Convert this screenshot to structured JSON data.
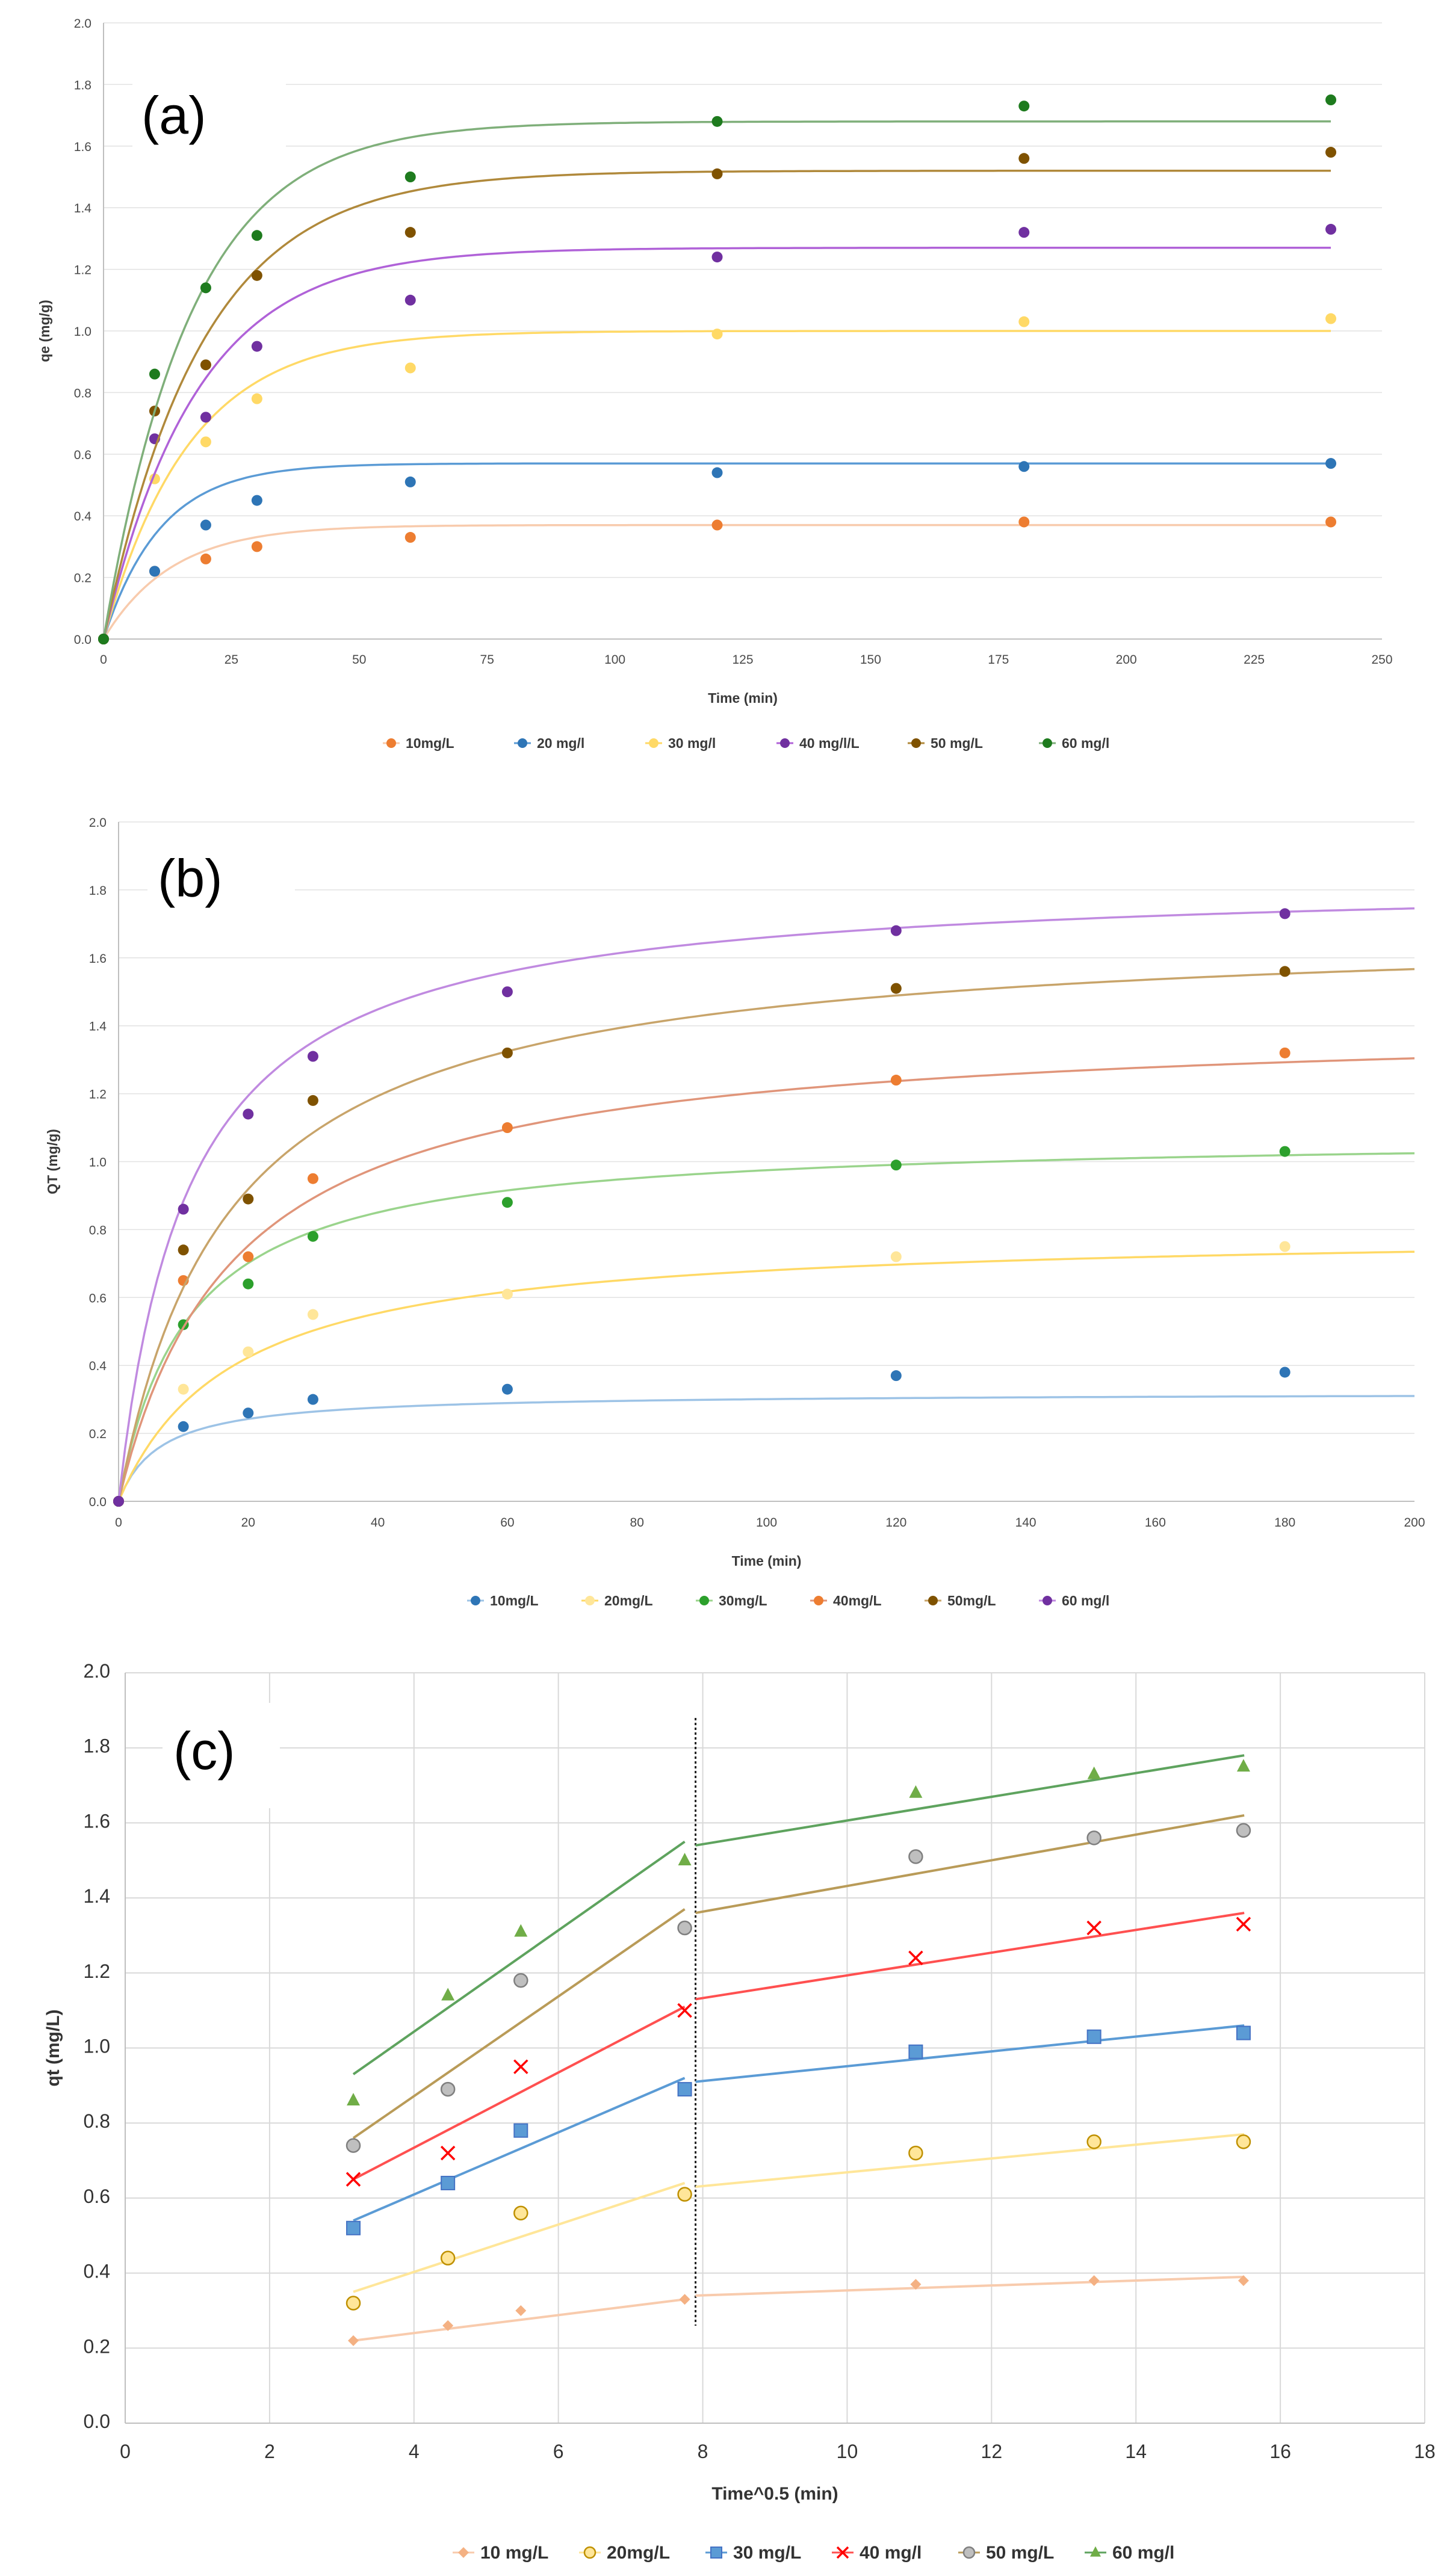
{
  "chart_data": [
    {
      "panel": "(a)",
      "type": "scatter",
      "xlabel": "Time (min)",
      "ylabel": "qe (mg/g)",
      "xlim": [
        0,
        250
      ],
      "ylim": [
        0,
        2.0
      ],
      "xticks": [
        0,
        25,
        50,
        75,
        100,
        125,
        150,
        175,
        200,
        225,
        250
      ],
      "yticks": [
        0.0,
        0.2,
        0.4,
        0.6,
        0.8,
        1.0,
        1.2,
        1.4,
        1.6,
        1.8,
        2.0
      ],
      "x": [
        0,
        10,
        20,
        30,
        60,
        120,
        180,
        240
      ],
      "series": [
        {
          "name": "10mg/L",
          "color": "#ED7D31",
          "fit_color": "#F8CBAD",
          "qe": 0.37,
          "k": 0.075,
          "values": [
            0,
            0.22,
            0.26,
            0.3,
            0.33,
            0.37,
            0.38,
            0.38
          ]
        },
        {
          "name": "20 mg/l",
          "color": "#2E75B6",
          "fit_color": "#5B9BD5",
          "qe": 0.57,
          "k": 0.09,
          "values": [
            0,
            0.22,
            0.37,
            0.45,
            0.51,
            0.54,
            0.56,
            0.57
          ]
        },
        {
          "name": "30 mg/l",
          "color": "#FFD966",
          "fit_color": "#FFD966",
          "qe": 1.0,
          "k": 0.06,
          "values": [
            0,
            0.52,
            0.64,
            0.78,
            0.88,
            0.99,
            1.03,
            1.04
          ]
        },
        {
          "name": "40 mg/l/L",
          "color": "#7030A0",
          "fit_color": "#B062D8",
          "qe": 1.27,
          "k": 0.055,
          "values": [
            0,
            0.65,
            0.72,
            0.95,
            1.1,
            1.24,
            1.32,
            1.33
          ]
        },
        {
          "name": "50 mg/L",
          "color": "#7F5200",
          "fit_color": "#B0893B",
          "qe": 1.52,
          "k": 0.052,
          "values": [
            0,
            0.74,
            0.89,
            1.18,
            1.32,
            1.51,
            1.56,
            1.58
          ]
        },
        {
          "name": "60 mg/l",
          "color": "#1E7B1E",
          "fit_color": "#7FAF7A",
          "qe": 1.68,
          "k": 0.058,
          "values": [
            0,
            0.86,
            1.14,
            1.31,
            1.5,
            1.68,
            1.73,
            1.75
          ]
        }
      ]
    },
    {
      "panel": "(b)",
      "type": "scatter",
      "xlabel": "Time (min)",
      "ylabel": "QT (mg/g)",
      "xlim": [
        0,
        200
      ],
      "ylim": [
        0,
        2.0
      ],
      "xticks": [
        0,
        20,
        40,
        60,
        80,
        100,
        120,
        140,
        160,
        180,
        200
      ],
      "yticks": [
        0.0,
        0.2,
        0.4,
        0.6,
        0.8,
        1.0,
        1.2,
        1.4,
        1.6,
        1.8,
        2.0
      ],
      "x": [
        0,
        10,
        20,
        30,
        60,
        120,
        180
      ],
      "series": [
        {
          "name": "10mg/L",
          "color": "#2E75B6",
          "fit_color": "#9DC3E6",
          "qe": 0.32,
          "h": 0.05,
          "values": [
            0,
            0.22,
            0.26,
            0.3,
            0.33,
            0.37,
            0.38
          ]
        },
        {
          "name": "20mg/L",
          "color": "#FFE699",
          "fit_color": "#FFD966",
          "qe": 0.8,
          "h": 0.045,
          "values": [
            0,
            0.33,
            0.44,
            0.55,
            0.61,
            0.72,
            0.75
          ]
        },
        {
          "name": "30mg/L",
          "color": "#2CA02C",
          "fit_color": "#9AD48C",
          "qe": 1.08,
          "h": 0.1,
          "values": [
            0,
            0.52,
            0.64,
            0.78,
            0.88,
            0.99,
            1.03
          ]
        },
        {
          "name": "40mg/L",
          "color": "#ED7D31",
          "fit_color": "#E0957A",
          "qe": 1.42,
          "h": 0.08,
          "values": [
            0,
            0.65,
            0.72,
            0.95,
            1.1,
            1.24,
            1.32
          ]
        },
        {
          "name": "50mg/L",
          "color": "#7F5200",
          "fit_color": "#C8A46A",
          "qe": 1.7,
          "h": 0.1,
          "values": [
            0,
            0.74,
            0.89,
            1.18,
            1.32,
            1.51,
            1.56
          ]
        },
        {
          "name": "60 mg/l",
          "color": "#7030A0",
          "fit_color": "#C08AE0",
          "qe": 1.84,
          "h": 0.17,
          "values": [
            0,
            0.86,
            1.14,
            1.31,
            1.5,
            1.68,
            1.73
          ]
        }
      ]
    },
    {
      "panel": "(c)",
      "type": "scatter",
      "xlabel": "Time^0.5 (min)",
      "ylabel": "qt (mg/L)",
      "xlim": [
        0,
        18
      ],
      "ylim": [
        0,
        2.0
      ],
      "xticks": [
        0,
        2,
        4,
        6,
        8,
        10,
        12,
        14,
        16,
        18
      ],
      "yticks": [
        0.0,
        0.2,
        0.4,
        0.6,
        0.8,
        1.0,
        1.2,
        1.4,
        1.6,
        1.8,
        2.0
      ],
      "divider_x": 7.9,
      "x": [
        3.16,
        4.47,
        5.48,
        7.75,
        10.95,
        13.42,
        15.49
      ],
      "series": [
        {
          "name": "10 mg/L",
          "marker": "diamond",
          "color": "#F4B183",
          "line_color": "#F8CBAD",
          "values": [
            0.22,
            0.26,
            0.3,
            0.33,
            0.37,
            0.38,
            0.38
          ],
          "seg1": [
            [
              3.16,
              0.22
            ],
            [
              7.75,
              0.33
            ]
          ],
          "seg2": [
            [
              7.9,
              0.34
            ],
            [
              15.5,
              0.39
            ]
          ]
        },
        {
          "name": "20mg/L",
          "marker": "circle",
          "color": "#FFD966",
          "line_color": "#FFE699",
          "values": [
            0.32,
            0.44,
            0.56,
            0.61,
            0.72,
            0.75,
            0.75
          ],
          "seg1": [
            [
              3.16,
              0.35
            ],
            [
              7.75,
              0.64
            ]
          ],
          "seg2": [
            [
              7.9,
              0.63
            ],
            [
              15.5,
              0.77
            ]
          ]
        },
        {
          "name": "30  mg/L",
          "marker": "square",
          "color": "#5B9BD5",
          "line_color": "#5B9BD5",
          "values": [
            0.52,
            0.64,
            0.78,
            0.89,
            0.99,
            1.03,
            1.04
          ],
          "seg1": [
            [
              3.16,
              0.54
            ],
            [
              7.75,
              0.92
            ]
          ],
          "seg2": [
            [
              7.9,
              0.91
            ],
            [
              15.5,
              1.06
            ]
          ]
        },
        {
          "name": "40 mg/l",
          "marker": "x",
          "color": "#FF0000",
          "line_color": "#FF5050",
          "values": [
            0.65,
            0.72,
            0.95,
            1.1,
            1.24,
            1.32,
            1.33
          ],
          "seg1": [
            [
              3.16,
              0.65
            ],
            [
              7.75,
              1.11
            ]
          ],
          "seg2": [
            [
              7.9,
              1.13
            ],
            [
              15.5,
              1.36
            ]
          ]
        },
        {
          "name": "50 mg/L",
          "marker": "circle",
          "color": "#A5A5A5",
          "line_color": "#B99B58",
          "values": [
            0.74,
            0.89,
            1.18,
            1.32,
            1.51,
            1.56,
            1.58
          ],
          "seg1": [
            [
              3.16,
              0.76
            ],
            [
              7.75,
              1.37
            ]
          ],
          "seg2": [
            [
              7.9,
              1.36
            ],
            [
              15.5,
              1.62
            ]
          ]
        },
        {
          "name": "60 mg/l",
          "marker": "triangle",
          "color": "#70AD47",
          "line_color": "#5EA35E",
          "values": [
            0.86,
            1.14,
            1.31,
            1.5,
            1.68,
            1.73,
            1.75
          ],
          "seg1": [
            [
              3.16,
              0.93
            ],
            [
              7.75,
              1.55
            ]
          ],
          "seg2": [
            [
              7.9,
              1.54
            ],
            [
              15.5,
              1.78
            ]
          ]
        }
      ]
    }
  ]
}
